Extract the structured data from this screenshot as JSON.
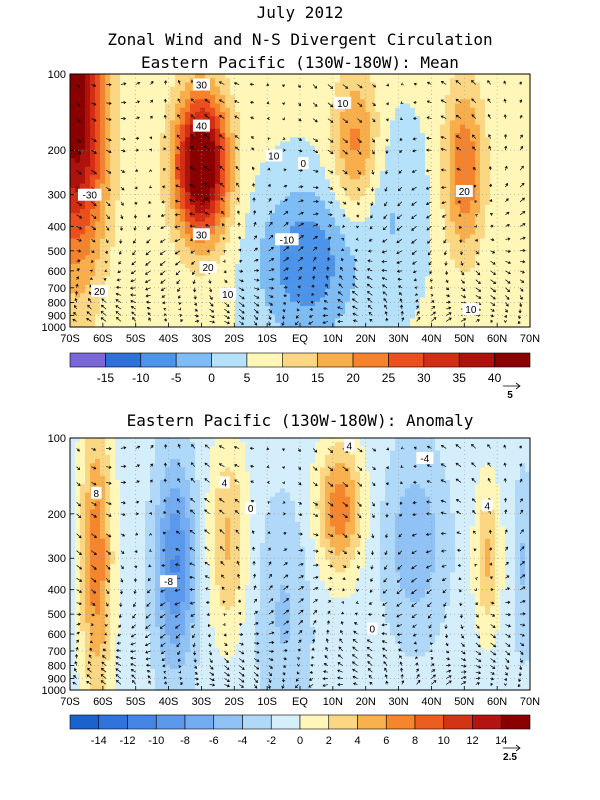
{
  "header": {
    "title_line1": "July 2012",
    "title_line2": "Zonal Wind and N-S Divergent Circulation",
    "title_line3": "Eastern Pacific (130W-180W): Mean"
  },
  "chart_data": [
    {
      "type": "heatmap",
      "title": "Eastern Pacific (130W-180W): Mean",
      "x_ticks": [
        "70S",
        "60S",
        "50S",
        "40S",
        "30S",
        "20S",
        "10S",
        "EQ",
        "10N",
        "20N",
        "30N",
        "40N",
        "50N",
        "60N",
        "70N"
      ],
      "y_ticks": [
        "100",
        "200",
        "300",
        "400",
        "500",
        "600",
        "700",
        "800",
        "900",
        "1000"
      ],
      "y_scale": "log",
      "ylim": [
        1000,
        100
      ],
      "contour_labels": [
        "30",
        "40",
        "10",
        "0",
        "10",
        "-30",
        "20",
        "30",
        "-10",
        "20",
        "20",
        "10",
        "10"
      ],
      "colorbar": {
        "labels": [
          "-15",
          "-10",
          "-5",
          "0",
          "5",
          "10",
          "15",
          "20",
          "25",
          "30",
          "35",
          "40"
        ],
        "colors": [
          "#7b68d8",
          "#2e6fd8",
          "#4c93ea",
          "#7dbcf5",
          "#b6e1fa",
          "#fff6b8",
          "#fbd784",
          "#f9ae4c",
          "#f5822c",
          "#ea4f1d",
          "#d22e14",
          "#ae120c",
          "#8a0000"
        ]
      },
      "vector_reference": "5"
    },
    {
      "type": "heatmap",
      "title": "Eastern Pacific (130W-180W): Anomaly",
      "x_ticks": [
        "70S",
        "60S",
        "50S",
        "40S",
        "30S",
        "20S",
        "10S",
        "EQ",
        "10N",
        "20N",
        "30N",
        "40N",
        "50N",
        "60N",
        "70N"
      ],
      "y_ticks": [
        "100",
        "200",
        "300",
        "400",
        "500",
        "600",
        "700",
        "800",
        "900",
        "1000"
      ],
      "y_scale": "log",
      "ylim": [
        1000,
        100
      ],
      "contour_labels": [
        "8",
        "4",
        "-8",
        "0",
        "4",
        "-4",
        "4",
        "0"
      ],
      "colorbar": {
        "labels": [
          "-14",
          "-12",
          "-10",
          "-8",
          "-6",
          "-4",
          "-2",
          "0",
          "2",
          "4",
          "6",
          "8",
          "10",
          "12",
          "14"
        ],
        "colors": [
          "#1a62cc",
          "#2e74dc",
          "#4586e4",
          "#5b99ec",
          "#74acf2",
          "#90c2f6",
          "#b0d8f9",
          "#d4eefc",
          "#fff6b8",
          "#fbd784",
          "#f9b04e",
          "#f5862e",
          "#ec5e1f",
          "#d33415",
          "#b31410",
          "#8a0000"
        ]
      },
      "vector_reference": "2.5"
    }
  ]
}
